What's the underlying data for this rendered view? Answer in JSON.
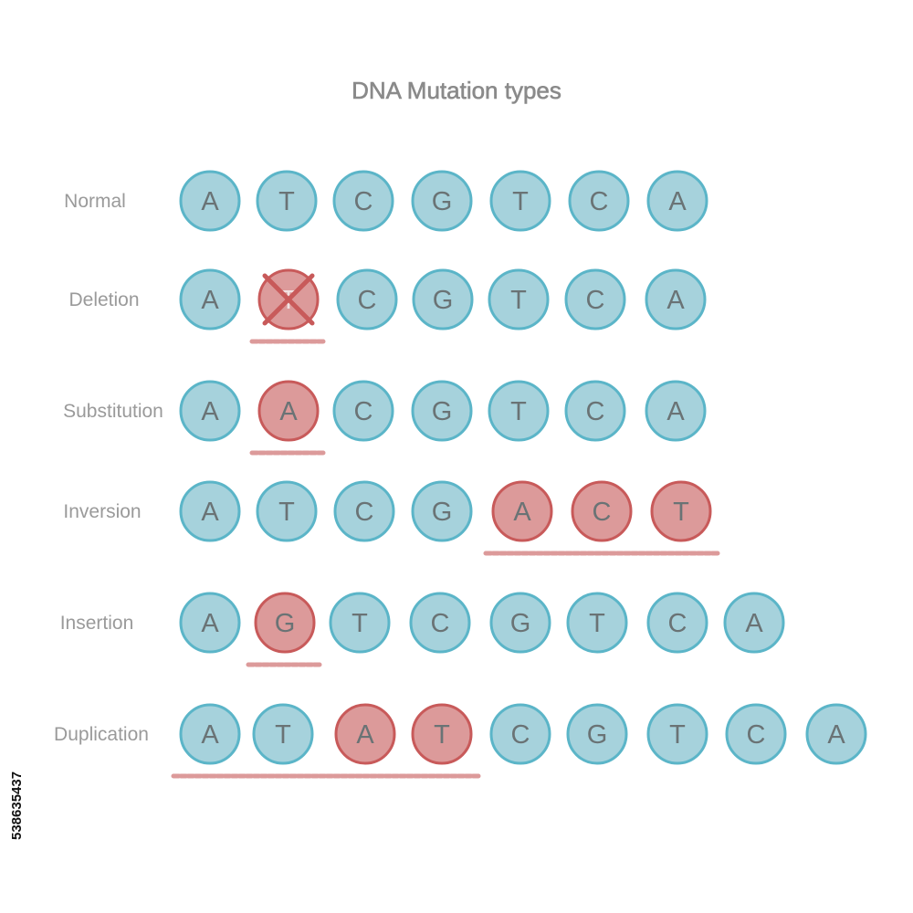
{
  "title": "DNA Mutation types",
  "stock_id": "538635437",
  "colors": {
    "normal_fill": "#a6d2dc",
    "normal_stroke": "#5bb5c8",
    "mutant_fill": "#dc9a9a",
    "mutant_stroke": "#c85a5a",
    "letter": "#6a7375",
    "label": "#9a9a9a",
    "title": "#8a8a8a",
    "underline": "#dc9a9a",
    "cross": "#c85a5a"
  },
  "rows": [
    {
      "label": "Normal",
      "bases": [
        {
          "letter": "A",
          "mutant": false
        },
        {
          "letter": "T",
          "mutant": false
        },
        {
          "letter": "C",
          "mutant": false
        },
        {
          "letter": "G",
          "mutant": false
        },
        {
          "letter": "T",
          "mutant": false
        },
        {
          "letter": "C",
          "mutant": false
        },
        {
          "letter": "A",
          "mutant": false
        }
      ]
    },
    {
      "label": "Deletion",
      "bases": [
        {
          "letter": "A",
          "mutant": false
        },
        {
          "letter": "T",
          "mutant": true,
          "deleted": true
        },
        {
          "letter": "C",
          "mutant": false
        },
        {
          "letter": "G",
          "mutant": false
        },
        {
          "letter": "T",
          "mutant": false
        },
        {
          "letter": "C",
          "mutant": false
        },
        {
          "letter": "A",
          "mutant": false
        }
      ],
      "underline_bases": [
        1,
        1
      ]
    },
    {
      "label": "Substitution",
      "bases": [
        {
          "letter": "A",
          "mutant": false
        },
        {
          "letter": "A",
          "mutant": true
        },
        {
          "letter": "C",
          "mutant": false
        },
        {
          "letter": "G",
          "mutant": false
        },
        {
          "letter": "T",
          "mutant": false
        },
        {
          "letter": "C",
          "mutant": false
        },
        {
          "letter": "A",
          "mutant": false
        }
      ],
      "underline_bases": [
        1,
        1
      ]
    },
    {
      "label": "Inversion",
      "bases": [
        {
          "letter": "A",
          "mutant": false
        },
        {
          "letter": "T",
          "mutant": false
        },
        {
          "letter": "C",
          "mutant": false
        },
        {
          "letter": "G",
          "mutant": false
        },
        {
          "letter": "A",
          "mutant": true
        },
        {
          "letter": "C",
          "mutant": true
        },
        {
          "letter": "T",
          "mutant": true
        }
      ],
      "underline_bases": [
        4,
        6
      ]
    },
    {
      "label": "Insertion",
      "bases": [
        {
          "letter": "A",
          "mutant": false
        },
        {
          "letter": "G",
          "mutant": true
        },
        {
          "letter": "T",
          "mutant": false
        },
        {
          "letter": "C",
          "mutant": false
        },
        {
          "letter": "G",
          "mutant": false
        },
        {
          "letter": "T",
          "mutant": false
        },
        {
          "letter": "C",
          "mutant": false
        },
        {
          "letter": "A",
          "mutant": false
        }
      ],
      "underline_bases": [
        1,
        1
      ]
    },
    {
      "label": "Duplication",
      "bases": [
        {
          "letter": "A",
          "mutant": false
        },
        {
          "letter": "T",
          "mutant": false
        },
        {
          "letter": "A",
          "mutant": true
        },
        {
          "letter": "T",
          "mutant": true
        },
        {
          "letter": "C",
          "mutant": false
        },
        {
          "letter": "G",
          "mutant": false
        },
        {
          "letter": "T",
          "mutant": false
        },
        {
          "letter": "C",
          "mutant": false
        },
        {
          "letter": "A",
          "mutant": false
        }
      ],
      "underline_bases": [
        0,
        3
      ]
    }
  ]
}
